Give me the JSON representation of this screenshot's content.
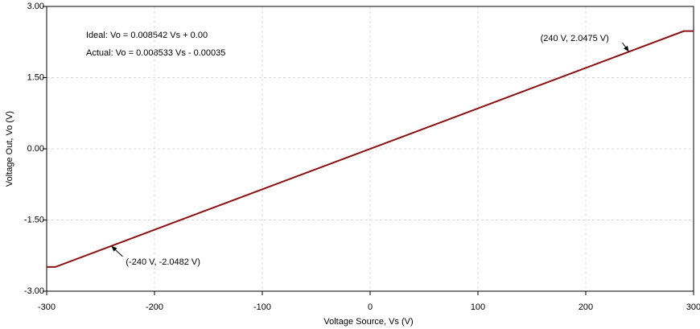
{
  "chart_data": {
    "type": "line",
    "xlabel": "Voltage Source, Vs (V)",
    "ylabel": "Voltage Out, Vo (V)",
    "equations": [
      "Ideal: Vo = 0.008542 Vs + 0.00",
      "Actual: Vo = 0.008533 Vs - 0.00035"
    ],
    "annotations": [
      {
        "text": "(240 V, 2.0475 V)",
        "x": 240,
        "y": 2.0475
      },
      {
        "text": "(-240 V, -2.0482 V)",
        "x": -240,
        "y": -2.0482
      }
    ],
    "x": [
      -300,
      -292,
      291,
      300
    ],
    "series": [
      {
        "color": "#8b1010",
        "values": [
          -2.49,
          -2.49,
          2.48,
          2.48
        ]
      }
    ],
    "xlim": [
      -300,
      300
    ],
    "xticks": [
      -300,
      -200,
      -100,
      0,
      100,
      200,
      300
    ],
    "ylim": [
      -3,
      3
    ],
    "yticks": [
      {
        "value": 3,
        "label": "3.00"
      },
      {
        "value": 1.5,
        "label": "1.50"
      },
      {
        "value": 0,
        "label": "0.00"
      },
      {
        "value": -1.5,
        "label": "-1.50"
      },
      {
        "value": -3,
        "label": "-3.00"
      }
    ],
    "grid": true
  }
}
